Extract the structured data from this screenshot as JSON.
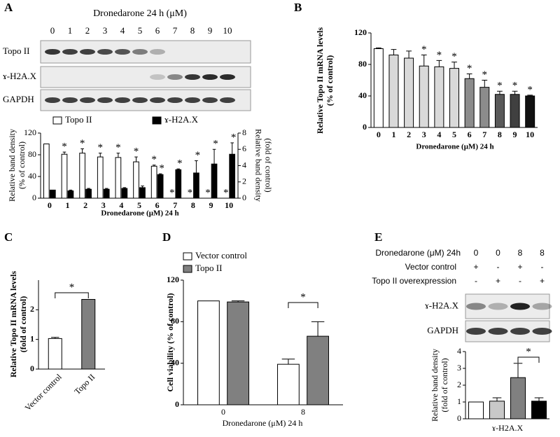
{
  "panel_labels": [
    "A",
    "B",
    "C",
    "D",
    "E"
  ],
  "blot_a": {
    "title": "Dronedarone 24 h (μM)",
    "lanes": [
      "0",
      "1",
      "2",
      "3",
      "4",
      "5",
      "6",
      "7",
      "8",
      "9",
      "10"
    ],
    "rows": [
      "Topo II",
      "ɤ-H2A.X",
      "GAPDH"
    ]
  },
  "blot_e": {
    "treatment": [
      {
        "label": "Dronedarone (μM) 24h",
        "cells": [
          "0",
          "0",
          "8",
          "8"
        ]
      },
      {
        "label": "Vector control",
        "cells": [
          "+",
          "-",
          "+",
          "-"
        ]
      },
      {
        "label": "Topo II overexpression",
        "cells": [
          "-",
          "+",
          "-",
          "+"
        ]
      }
    ],
    "rows": [
      "ɤ-H2A.X",
      "GAPDH"
    ]
  },
  "chart_data": [
    {
      "type": "bar",
      "categories": [
        "0",
        "1",
        "2",
        "3",
        "4",
        "5",
        "6",
        "7",
        "8",
        "9",
        "10"
      ],
      "xlabel": "Dronedarone (μM) 24 h",
      "ylabel": [
        "Relative band density",
        "(% of control)"
      ],
      "y2label": [
        "Relative band density",
        "(fold of control)"
      ],
      "ylim": [
        0,
        120
      ],
      "yticks": [
        0,
        40,
        80,
        120
      ],
      "y2lim": [
        0,
        8
      ],
      "y2ticks": [
        0,
        2,
        4,
        6,
        8
      ],
      "annotation": "*",
      "series": [
        {
          "name": "Topo II",
          "color": "#ffffff",
          "values": [
            100,
            81,
            83,
            76,
            75,
            67,
            59,
            0,
            0,
            0,
            0
          ],
          "errors": [
            0,
            4,
            8,
            7,
            8,
            9,
            2,
            0,
            0,
            0,
            0
          ],
          "significant": [
            false,
            true,
            true,
            true,
            true,
            true,
            true,
            true,
            true,
            true,
            true
          ]
        },
        {
          "name": "ɤ-H2A.X",
          "color": "#000000",
          "axis": "y2",
          "values": [
            1,
            0.9,
            1.1,
            1.1,
            1.2,
            1.3,
            2.9,
            3.5,
            3.1,
            4.2,
            5.4
          ],
          "errors": [
            0,
            0.1,
            0.1,
            0.1,
            0.1,
            0.2,
            0.1,
            0.1,
            1.5,
            1.8,
            1.4
          ],
          "significant": [
            false,
            false,
            false,
            false,
            false,
            false,
            true,
            true,
            true,
            true,
            true
          ]
        }
      ]
    },
    {
      "type": "bar",
      "categories": [
        "0",
        "1",
        "2",
        "3",
        "4",
        "5",
        "6",
        "7",
        "8",
        "9",
        "10"
      ],
      "xlabel": "Dronedarone (μM) 24 h",
      "ylabel": [
        "Relative Topo II mRNA levels",
        "(% of control)"
      ],
      "ylim": [
        0,
        120
      ],
      "yticks": [
        0,
        40,
        80,
        120
      ],
      "annotation": "*",
      "values": [
        100,
        92,
        88,
        78,
        77,
        75,
        62,
        51,
        42,
        42,
        40
      ],
      "errors": [
        1,
        7,
        9,
        14,
        8,
        8,
        6,
        9,
        4,
        4,
        1
      ],
      "significant": [
        false,
        false,
        false,
        true,
        true,
        true,
        true,
        true,
        true,
        true,
        true
      ],
      "colors": [
        "#ffffff",
        "#d9d9d9",
        "#d9d9d9",
        "#d9d9d9",
        "#d9d9d9",
        "#d9d9d9",
        "#8c8c8c",
        "#8c8c8c",
        "#595959",
        "#404040",
        "#111111"
      ]
    },
    {
      "type": "bar",
      "categories": [
        "Vector control",
        "Topo II"
      ],
      "ylabel": [
        "Relative Topo II mRNA levels",
        "(fold of control)"
      ],
      "ylim": [
        0,
        3
      ],
      "yticks": [
        0,
        1,
        2
      ],
      "annotation": "*",
      "values": [
        1.03,
        2.35
      ],
      "errors": [
        0.04,
        0
      ],
      "colors": [
        "#ffffff",
        "#808080"
      ]
    },
    {
      "type": "bar",
      "categories": [
        "0",
        "8"
      ],
      "xlabel": "Dronedarone (μM) 24 h",
      "ylabel": [
        "Cell viability (% of control)"
      ],
      "ylim": [
        0,
        120
      ],
      "yticks": [
        0,
        40,
        80,
        120
      ],
      "annotation": "*",
      "series": [
        {
          "name": "Vector control",
          "color": "#ffffff",
          "values": [
            100,
            39
          ],
          "errors": [
            0,
            5
          ]
        },
        {
          "name": "Topo II",
          "color": "#808080",
          "values": [
            99,
            66
          ],
          "errors": [
            1,
            14
          ]
        }
      ]
    },
    {
      "type": "bar",
      "categories": [
        null,
        null,
        null,
        null
      ],
      "xlabel": "ɤ-H2A.X",
      "ylabel": [
        "Relative band density",
        "(fold of control)"
      ],
      "ylim": [
        0,
        4
      ],
      "yticks": [
        0,
        1,
        2,
        3,
        4
      ],
      "annotation": "*",
      "values": [
        1,
        1.05,
        2.45,
        1.05
      ],
      "errors": [
        0,
        0.2,
        0.85,
        0.2
      ],
      "colors": [
        "#ffffff",
        "#c8c8c8",
        "#808080",
        "#000000"
      ]
    }
  ]
}
